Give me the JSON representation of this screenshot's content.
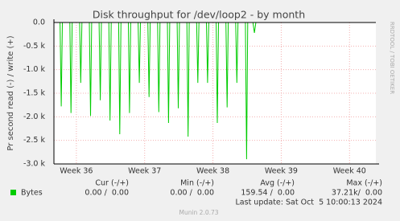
{
  "chart_data": {
    "type": "line",
    "title": "Disk throughput for /dev/loop2 - by month",
    "y_label": "Pr second read (-) / write (+)",
    "side_label": "RRDTOOL / TOBI OETIKER",
    "xlim": [
      0,
      33
    ],
    "xticks": [
      {
        "value": 2.3,
        "label": "Week 36"
      },
      {
        "value": 9.3,
        "label": "Week 37"
      },
      {
        "value": 16.3,
        "label": "Week 38"
      },
      {
        "value": 23.3,
        "label": "Week 39"
      },
      {
        "value": 30.3,
        "label": "Week 40"
      }
    ],
    "ylim": [
      -3000,
      0
    ],
    "yticks": [
      {
        "value": 0,
        "label": "0.0"
      },
      {
        "value": -500,
        "label": "-0.5 k"
      },
      {
        "value": -1000,
        "label": "-1.0 k"
      },
      {
        "value": -1500,
        "label": "-1.5 k"
      },
      {
        "value": -2000,
        "label": "-2.0 k"
      },
      {
        "value": -2500,
        "label": "-2.5 k"
      },
      {
        "value": -3000,
        "label": "-3.0 k"
      }
    ],
    "grid": true,
    "series": [
      {
        "name": "Bytes",
        "color": "#00cc00",
        "x": [
          0,
          0.63,
          0.75,
          0.87,
          1.63,
          1.75,
          1.87,
          2.63,
          2.75,
          2.87,
          3.63,
          3.75,
          3.87,
          4.63,
          4.75,
          4.87,
          5.63,
          5.75,
          5.87,
          6.63,
          6.75,
          6.87,
          7.63,
          7.75,
          7.87,
          8.63,
          8.75,
          8.87,
          9.63,
          9.75,
          9.87,
          10.63,
          10.75,
          10.87,
          11.63,
          11.75,
          11.87,
          12.63,
          12.75,
          12.87,
          13.63,
          13.75,
          13.87,
          14.63,
          14.75,
          14.87,
          15.63,
          15.75,
          15.87,
          16.63,
          16.75,
          16.87,
          17.63,
          17.75,
          17.87,
          18.63,
          18.75,
          18.87,
          19.63,
          19.75,
          19.87,
          20.4,
          20.55,
          20.7,
          20.9
        ],
        "values": [
          0,
          0,
          -1780,
          0,
          0,
          -1920,
          0,
          0,
          -1280,
          0,
          0,
          -1980,
          0,
          0,
          -1650,
          0,
          0,
          -2080,
          0,
          0,
          -2370,
          0,
          0,
          -1920,
          0,
          0,
          -1280,
          0,
          0,
          -1580,
          0,
          0,
          -1900,
          0,
          0,
          -2130,
          0,
          0,
          -1820,
          0,
          0,
          -2420,
          0,
          0,
          -1280,
          0,
          0,
          -1280,
          0,
          0,
          -2130,
          0,
          0,
          -1800,
          0,
          0,
          -1280,
          0,
          0,
          -2900,
          0,
          0,
          -220,
          0,
          0
        ]
      }
    ],
    "stats": {
      "headers": [
        "Cur (-/+)",
        "Min (-/+)",
        "Avg (-/+)",
        "Max (-/+)"
      ],
      "row": [
        "0.00 /  0.00",
        "0.00 /  0.00",
        "159.54 /  0.00",
        "37.21k/  0.00"
      ]
    },
    "last_update": "Last update: Sat Oct  5 10:00:13 2024",
    "footer": "Munin 2.0.73"
  }
}
